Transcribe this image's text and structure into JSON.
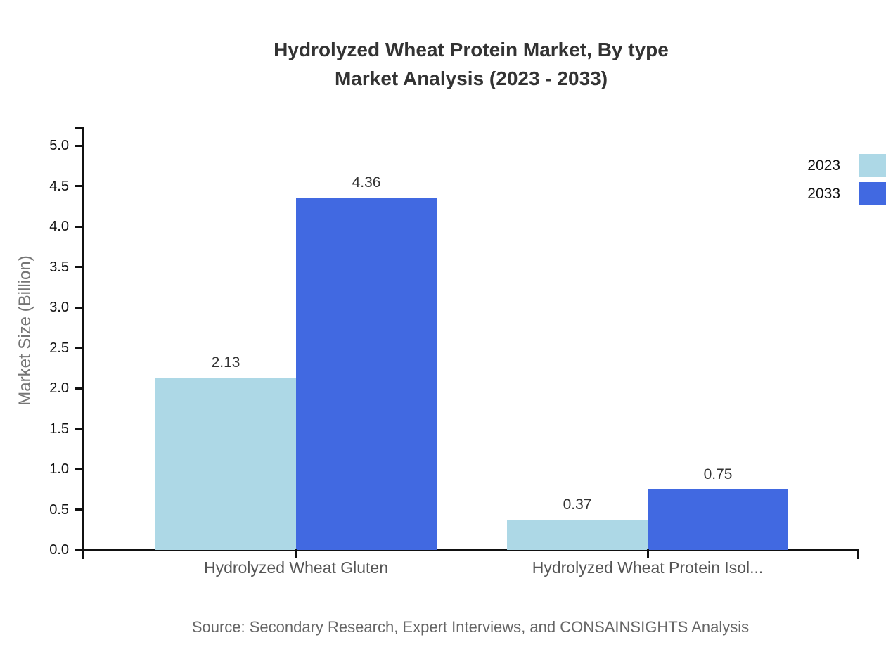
{
  "title": {
    "line1": "Hydrolyzed Wheat Protein Market, By type",
    "line2": "Market Analysis (2023 - 2033)"
  },
  "source": "Source: Secondary Research, Expert Interviews, and CONSAINSIGHTS Analysis",
  "chart_data": {
    "type": "bar",
    "title": "Hydrolyzed Wheat Protein Market, By type Market Analysis (2023 - 2033)",
    "categories": [
      "Hydrolyzed Wheat Gluten",
      "Hydrolyzed Wheat Protein Isol..."
    ],
    "series": [
      {
        "name": "2023",
        "color": "#ADD8E6",
        "values": [
          2.13,
          0.37
        ]
      },
      {
        "name": "2033",
        "color": "#4169E1",
        "values": [
          4.36,
          0.75
        ]
      }
    ],
    "xlabel": "",
    "ylabel": "Market Size (Billion)",
    "ylim": [
      0.0,
      5.0
    ],
    "yticks": [
      "0.0",
      "0.5",
      "1.0",
      "1.5",
      "2.0",
      "2.5",
      "3.0",
      "3.5",
      "4.0",
      "4.5",
      "5.0"
    ],
    "grid": false,
    "legend_position": "top-right",
    "value_labels": true
  }
}
